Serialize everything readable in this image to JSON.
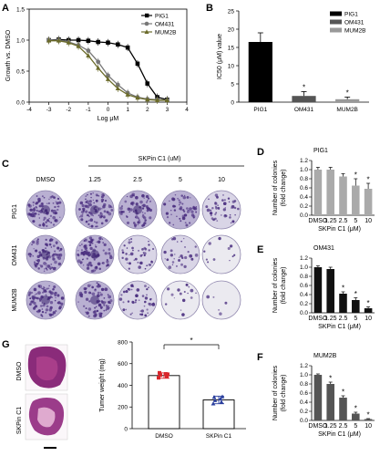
{
  "panels": {
    "A": "A",
    "B": "B",
    "C": "C",
    "D": "D",
    "E": "E",
    "F": "F",
    "G": "G"
  },
  "colors": {
    "black": "#000000",
    "dark_gray": "#555555",
    "mid_gray": "#999999",
    "light_gray": "#aaaaaa",
    "olive": "#6b6b2a",
    "red": "#d9262b",
    "blue": "#2a3f9d",
    "stain": "#5b3f8f"
  },
  "plates": {
    "title": "SKPin C1 (uM)",
    "cols": [
      "DMSO",
      "1.25",
      "2.5",
      "5",
      "10"
    ],
    "rows": [
      "PIG1",
      "OM431",
      "MUM2B"
    ]
  },
  "tissue": {
    "labels": [
      "DMSO",
      "SKPin C1"
    ]
  },
  "chart_data": [
    {
      "panel": "A",
      "type": "line",
      "xlabel": "Log μM",
      "ylabel": "Growth vs. DMSO",
      "xlim": [
        -4,
        4
      ],
      "ylim": [
        0,
        1.5
      ],
      "xticks": [
        "-4",
        "-3",
        "-2",
        "-1",
        "0",
        "1",
        "2",
        "3",
        "4"
      ],
      "yticks": [
        "0.0",
        "0.5",
        "1.0",
        "1.5"
      ],
      "legend_position": "top-right",
      "series": [
        {
          "name": "PIG1",
          "marker": "square",
          "color": "#000000",
          "x": [
            -3,
            -2.5,
            -2,
            -1.5,
            -1,
            -0.5,
            0,
            0.5,
            1,
            1.5,
            2,
            2.5,
            3
          ],
          "y": [
            1.0,
            1.01,
            1.0,
            1.0,
            0.99,
            0.97,
            0.96,
            0.93,
            0.88,
            0.62,
            0.3,
            0.08,
            0.04
          ]
        },
        {
          "name": "OM431",
          "marker": "circle",
          "color": "#777777",
          "x": [
            -3,
            -2.5,
            -2,
            -1.5,
            -1,
            -0.5,
            0,
            0.5,
            1,
            1.5,
            2,
            2.5,
            3
          ],
          "y": [
            1.0,
            1.0,
            0.97,
            0.92,
            0.83,
            0.65,
            0.43,
            0.28,
            0.15,
            0.08,
            0.05,
            0.04,
            0.03
          ]
        },
        {
          "name": "MUM2B",
          "marker": "triangle",
          "color": "#6b6b2a",
          "x": [
            -3,
            -2.5,
            -2,
            -1.5,
            -1,
            -0.5,
            0,
            0.5,
            1,
            1.5,
            2,
            2.5,
            3
          ],
          "y": [
            0.99,
            0.99,
            0.96,
            0.9,
            0.75,
            0.55,
            0.37,
            0.22,
            0.12,
            0.07,
            0.04,
            0.03,
            0.03
          ]
        }
      ]
    },
    {
      "panel": "B",
      "type": "bar",
      "ylabel": "IC50 (μM) value",
      "ylim": [
        0,
        25
      ],
      "yticks": [
        "0",
        "5",
        "10",
        "15",
        "20",
        "25"
      ],
      "categories": [
        "PIG1",
        "OM431",
        "MUM2B"
      ],
      "values": [
        16.5,
        1.7,
        0.8
      ],
      "errors": [
        2.5,
        1.2,
        0.6
      ],
      "colors": [
        "#000000",
        "#555555",
        "#999999"
      ],
      "annotations": [
        "",
        "*",
        "*"
      ],
      "legend": [
        "PIG1",
        "OM431",
        "MUM2B"
      ],
      "legend_position": "top-right"
    },
    {
      "panel": "D",
      "type": "bar",
      "title": "PIG1",
      "xlabel": "SKPin C1 (μM)",
      "ylabel": "Number of colonies\n(fold change)",
      "ylim": [
        0,
        1.2
      ],
      "yticks": [
        "0.0",
        "0.2",
        "0.4",
        "0.6",
        "0.8",
        "1.0",
        "1.2"
      ],
      "categories": [
        "DMSO",
        "1.25",
        "2.5",
        "5",
        "10"
      ],
      "values": [
        1.0,
        1.0,
        0.85,
        0.65,
        0.58
      ],
      "errors": [
        0.05,
        0.05,
        0.06,
        0.15,
        0.12
      ],
      "color": "#aaaaaa",
      "annotations": [
        "",
        "",
        "",
        "*",
        "*"
      ]
    },
    {
      "panel": "E",
      "type": "bar",
      "title": "OM431",
      "xlabel": "SKPin C1 (μM)",
      "ylabel": "Number of colonies\n(fold change)",
      "ylim": [
        0,
        1.2
      ],
      "yticks": [
        "0.0",
        "0.2",
        "0.4",
        "0.6",
        "0.8",
        "1.0",
        "1.2"
      ],
      "categories": [
        "DMSO",
        "1.25",
        "2.5",
        "5",
        "10"
      ],
      "values": [
        1.0,
        0.96,
        0.42,
        0.28,
        0.1
      ],
      "errors": [
        0.03,
        0.04,
        0.04,
        0.05,
        0.03
      ],
      "color": "#111111",
      "annotations": [
        "",
        "",
        "*",
        "*",
        "*"
      ]
    },
    {
      "panel": "F",
      "type": "bar",
      "title": "MUM2B",
      "xlabel": "SKPin C1 (μM)",
      "ylabel": "Number of colonies\n(fold change)",
      "ylim": [
        0,
        1.2
      ],
      "yticks": [
        "0.0",
        "0.2",
        "0.4",
        "0.6",
        "0.8",
        "1.0",
        "1.2"
      ],
      "categories": [
        "DMSO",
        "1.25",
        "2.5",
        "5",
        "10"
      ],
      "values": [
        1.0,
        0.8,
        0.5,
        0.15,
        0.03
      ],
      "errors": [
        0.02,
        0.04,
        0.04,
        0.03,
        0.01
      ],
      "color": "#555555",
      "annotations": [
        "",
        "*",
        "*",
        "*",
        "*"
      ]
    },
    {
      "panel": "G",
      "type": "bar",
      "ylabel": "Tumer weight (mg)",
      "ylim": [
        0,
        800
      ],
      "yticks": [
        "0",
        "200",
        "400",
        "600",
        "800"
      ],
      "categories": [
        "DMSO",
        "SKPin C1"
      ],
      "values": [
        490,
        265
      ],
      "errors": [
        25,
        35
      ],
      "point_colors": [
        "#d9262b",
        "#2a3f9d"
      ],
      "points": [
        [
          470,
          480,
          495,
          505,
          515,
          500
        ],
        [
          230,
          245,
          260,
          275,
          290,
          295
        ]
      ],
      "significance": "*"
    }
  ]
}
